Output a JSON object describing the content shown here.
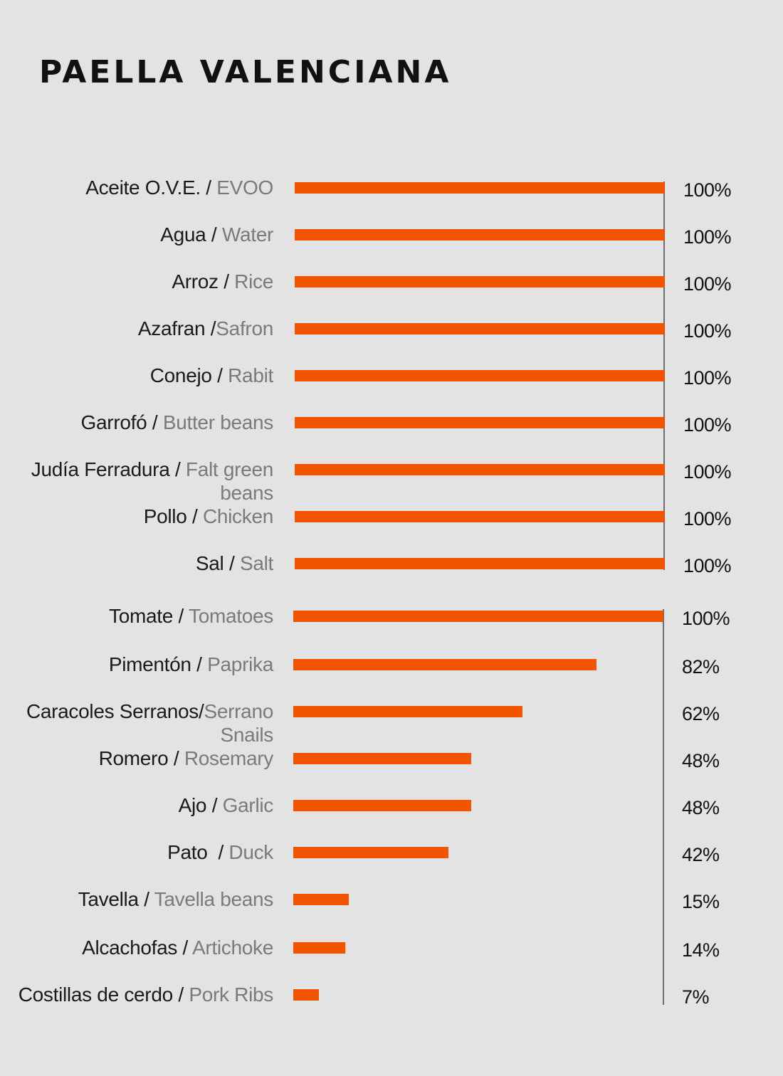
{
  "title": "PAELLA VALENCIANA",
  "colors": {
    "background": "#e3e3e3",
    "bar": "#f25500",
    "label_spanish": "#1a1a1a",
    "label_english": "#7a7a7a",
    "axis_line": "#6e6e6e"
  },
  "rows": [
    {
      "es": "Aceite O.V.E.",
      "sep": " / ",
      "en": "EVOO",
      "pct_label": "100%"
    },
    {
      "es": "Agua",
      "sep": " / ",
      "en": "Water",
      "pct_label": "100%"
    },
    {
      "es": "Arroz",
      "sep": " / ",
      "en": "Rice",
      "pct_label": "100%"
    },
    {
      "es": "Azafran",
      "sep": " /",
      "en": "Safron",
      "pct_label": "100%"
    },
    {
      "es": "Conejo",
      "sep": " / ",
      "en": "Rabit",
      "pct_label": "100%"
    },
    {
      "es": "Garrofó",
      "sep": " / ",
      "en": "Butter beans",
      "pct_label": "100%"
    },
    {
      "es": "Judía Ferradura",
      "sep": " / ",
      "en": "Falt green beans",
      "pct_label": "100%"
    },
    {
      "es": "Pollo",
      "sep": " / ",
      "en": "Chicken",
      "pct_label": "100%"
    },
    {
      "es": "Sal",
      "sep": " / ",
      "en": "Salt",
      "pct_label": "100%"
    },
    {
      "es": "Tomate",
      "sep": " / ",
      "en": "Tomatoes",
      "pct_label": "100%"
    },
    {
      "es": "Pimentón",
      "sep": " / ",
      "en": "Paprika",
      "pct_label": "82%"
    },
    {
      "es": "Caracoles Serranos",
      "sep": "/",
      "en": "Serrano Snails",
      "pct_label": "62%"
    },
    {
      "es": "Romero",
      "sep": " / ",
      "en": "Rosemary",
      "pct_label": "48%"
    },
    {
      "es": "Ajo",
      "sep": " / ",
      "en": "Garlic",
      "pct_label": "48%"
    },
    {
      "es": "Pato",
      "sep": "  / ",
      "en": "Duck",
      "pct_label": "42%"
    },
    {
      "es": "Tavella",
      "sep": " / ",
      "en": "Tavella beans",
      "pct_label": "15%"
    },
    {
      "es": "Alcachofas",
      "sep": " / ",
      "en": "Artichoke",
      "pct_label": "14%"
    },
    {
      "es": "Costillas de cerdo",
      "sep": " / ",
      "en": "Pork Ribs",
      "pct_label": "7%"
    }
  ],
  "chart_data": {
    "type": "bar",
    "orientation": "horizontal",
    "title": "PAELLA VALENCIANA",
    "xlabel": "",
    "ylabel": "",
    "xlim": [
      0,
      100
    ],
    "grid": false,
    "legend": null,
    "value_labels": "right side, percent",
    "categories": [
      "Aceite O.V.E. / EVOO",
      "Agua / Water",
      "Arroz / Rice",
      "Azafran / Safron",
      "Conejo / Rabit",
      "Garrofó / Butter beans",
      "Judía Ferradura / Falt green beans",
      "Pollo / Chicken",
      "Sal / Salt",
      "Tomate / Tomatoes",
      "Pimentón / Paprika",
      "Caracoles Serranos / Serrano Snails",
      "Romero / Rosemary",
      "Ajo / Garlic",
      "Pato / Duck",
      "Tavella / Tavella beans",
      "Alcachofas / Artichoke",
      "Costillas de cerdo / Pork Ribs"
    ],
    "values": [
      100,
      100,
      100,
      100,
      100,
      100,
      100,
      100,
      100,
      100,
      82,
      62,
      48,
      48,
      42,
      15,
      14,
      7
    ],
    "unit": "%"
  }
}
